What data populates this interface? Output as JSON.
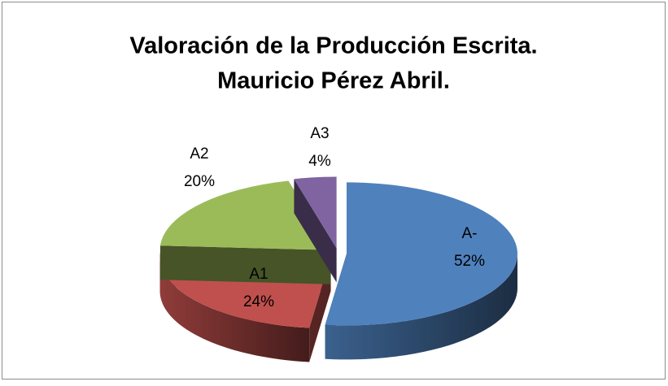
{
  "chart_data": {
    "type": "pie",
    "title": [
      "Valoración de la Producción Escrita.",
      "Mauricio Pérez Abril."
    ],
    "categories": [
      "A-",
      "A1",
      "A2",
      "A3"
    ],
    "values": [
      52,
      24,
      20,
      4
    ],
    "value_labels": [
      "52%",
      "24%",
      "20%",
      "4%"
    ],
    "colors": [
      "#4f81bd",
      "#c0504d",
      "#9bbb59",
      "#8064a2"
    ]
  }
}
